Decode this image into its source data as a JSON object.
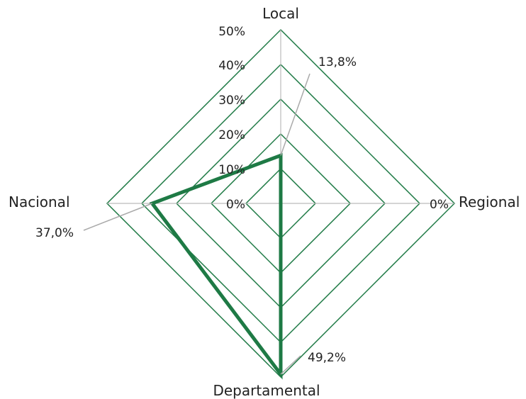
{
  "chart_data": {
    "type": "radar",
    "axes": [
      "Local",
      "Regional",
      "Departamental",
      "Nacional"
    ],
    "values": [
      13.8,
      0,
      49.2,
      37.0
    ],
    "value_labels": [
      "13,8%",
      "0%",
      "49,2%",
      "37,0%"
    ],
    "rmax": 50,
    "ticks": [
      0,
      10,
      20,
      30,
      40,
      50
    ],
    "tick_labels": [
      "0%",
      "10%",
      "20%",
      "30%",
      "40%",
      "50%"
    ],
    "colors": {
      "grid": "#1e7a45",
      "series": "#1e7a45",
      "leader": "#aaaaaa"
    }
  }
}
